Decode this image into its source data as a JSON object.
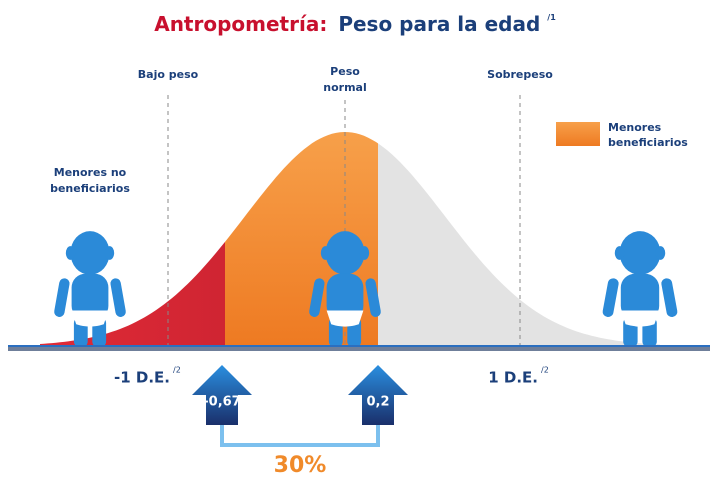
{
  "title": {
    "bold": "Antropometría:",
    "rest": "Peso para la edad",
    "note": "/1"
  },
  "zones": {
    "low": "Bajo peso",
    "normal_1": "Peso",
    "normal_2": "normal",
    "high": "Sobrepeso"
  },
  "legend": {
    "line_1": "Menores",
    "line_2": "beneficiarios"
  },
  "non_beneficiaries": {
    "line_1": "Menores no",
    "line_2": "beneficiarios"
  },
  "axis": {
    "minus": "-1 D.E.",
    "minus_note": "/2",
    "plus": "1 D.E.",
    "plus_note": "/2"
  },
  "arrows": {
    "left": "-0,67",
    "right": "0,2"
  },
  "result": "30%"
}
